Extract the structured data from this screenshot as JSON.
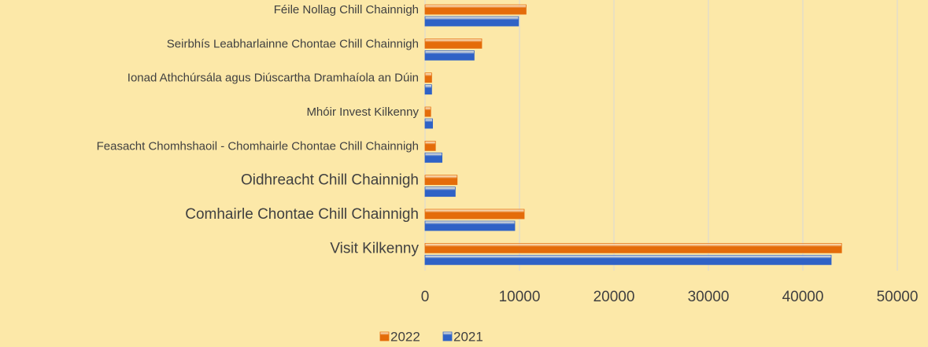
{
  "chart_data": {
    "type": "bar",
    "orientation": "horizontal",
    "categories": [
      "Féile Nollag Chill Chainnigh",
      "Seirbhís Leabharlainne Chontae Chill Chainnigh",
      "Ionad Athchúrsála agus Diúscartha Dramhaíola an Dúin",
      "Mhóir Invest Kilkenny",
      "Feasacht Chomhshaoil - Chomhairle Chontae Chill Chainnigh",
      "Oidhreacht Chill Chainnigh",
      "Comhairle Chontae Chill Chainnigh",
      "Visit Kilkenny"
    ],
    "series": [
      {
        "name": "2022",
        "color": "#e46c0a",
        "values": [
          10700,
          6000,
          700,
          600,
          1100,
          3400,
          10500,
          44100
        ]
      },
      {
        "name": "2021",
        "color": "#2f62c6",
        "values": [
          9900,
          5200,
          700,
          800,
          1800,
          3200,
          9500,
          43000
        ]
      }
    ],
    "xlim": [
      0,
      50000
    ],
    "xticks": [
      0,
      10000,
      20000,
      30000,
      40000,
      50000
    ],
    "grid": true,
    "legend": "bottom"
  }
}
